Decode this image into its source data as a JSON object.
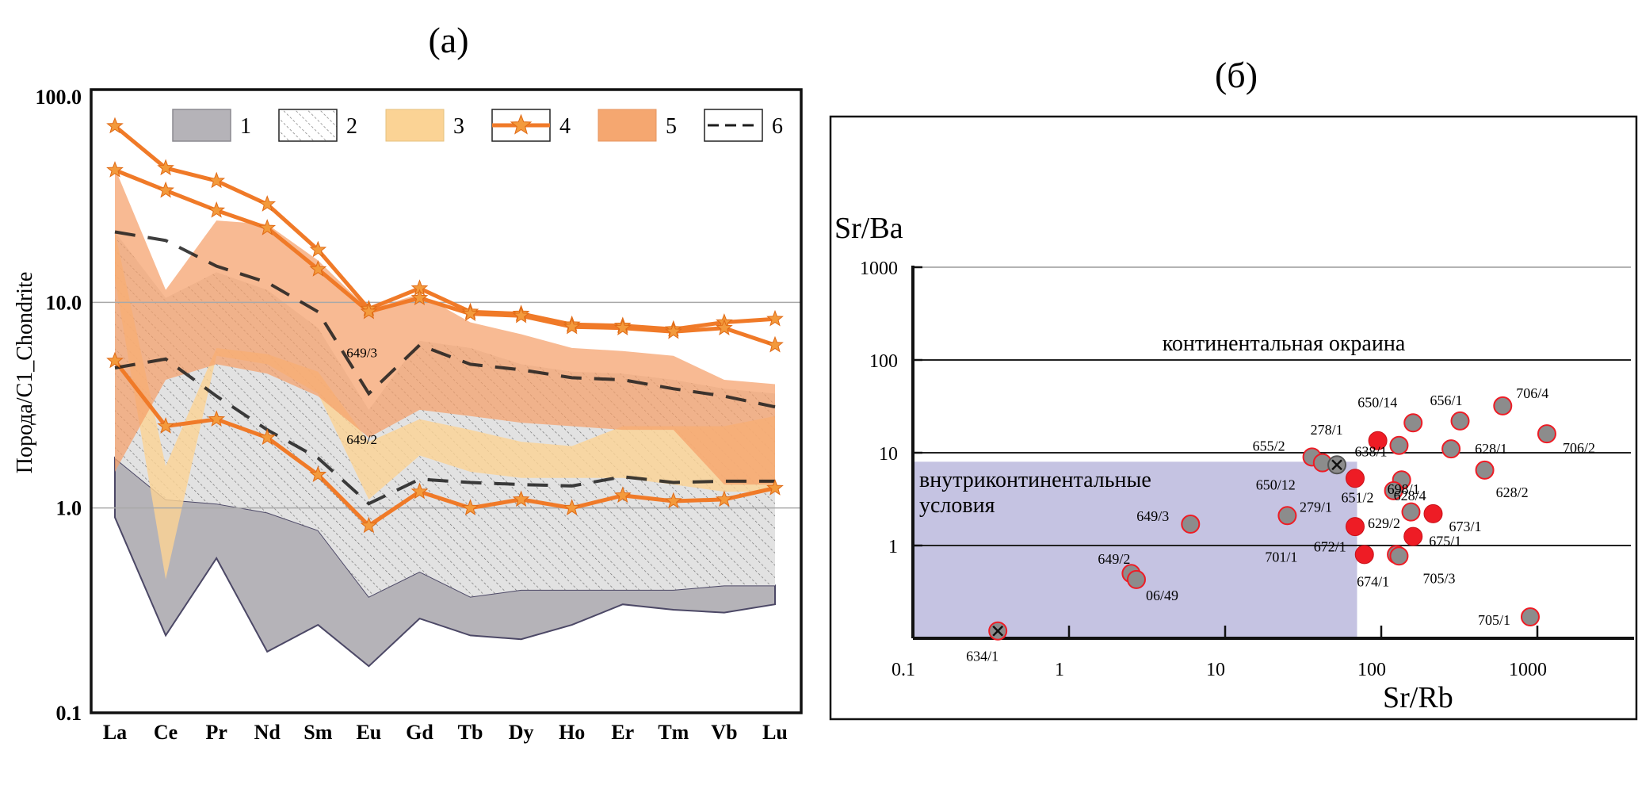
{
  "chart_data": [
    {
      "panel": "(a)",
      "type": "line",
      "ylabel": "Порода/C1_Chondrite",
      "yscale": "log",
      "ylim": [
        0.1,
        100.0
      ],
      "yticks": [
        "100.0",
        "10.0",
        "1.0",
        "0.1"
      ],
      "categories": [
        "La",
        "Ce",
        "Pr",
        "Nd",
        "Sm",
        "Eu",
        "Gd",
        "Tb",
        "Dy",
        "Ho",
        "Er",
        "Tm",
        "Vb",
        "Lu"
      ],
      "legend": [
        {
          "label": "1",
          "style": "gray-field",
          "color": "#b5b3b8"
        },
        {
          "label": "2",
          "style": "hatched-field",
          "color": "#dcdcdc"
        },
        {
          "label": "3",
          "style": "yellow-field",
          "color": "#fbd395"
        },
        {
          "label": "4",
          "style": "star-line",
          "color": "#f07a28"
        },
        {
          "label": "5",
          "style": "orange-field",
          "color": "#f5a770"
        },
        {
          "label": "6",
          "style": "dashed-line",
          "color": "#1c1c1c"
        }
      ],
      "fields": [
        {
          "name": "1",
          "lower": [
            0.9,
            0.24,
            0.57,
            0.2,
            0.27,
            0.17,
            0.29,
            0.24,
            0.23,
            0.27,
            0.34,
            0.32,
            0.31,
            0.34
          ],
          "upper": [
            1.75,
            1.1,
            1.05,
            0.95,
            0.78,
            0.37,
            0.49,
            0.37,
            0.4,
            0.4,
            0.4,
            0.4,
            0.42,
            0.42
          ]
        },
        {
          "name": "2",
          "lower": [
            1.75,
            1.1,
            1.05,
            0.95,
            0.78,
            0.37,
            0.49,
            0.37,
            0.4,
            0.4,
            0.4,
            0.4,
            0.42,
            0.42
          ],
          "upper": [
            22.0,
            10.5,
            14.0,
            11.5,
            7.5,
            3.0,
            6.5,
            6.0,
            5.0,
            4.6,
            4.5,
            4.2,
            3.8,
            3.6
          ]
        },
        {
          "name": "3",
          "lower": [
            13.0,
            0.45,
            5.5,
            5.0,
            3.6,
            1.1,
            1.8,
            1.5,
            1.4,
            1.4,
            1.4,
            1.3,
            1.2,
            1.2
          ],
          "upper": [
            22.0,
            1.6,
            6.0,
            5.6,
            4.6,
            2.1,
            2.7,
            2.4,
            2.1,
            2.0,
            2.5,
            2.5,
            2.5,
            2.8
          ]
        },
        {
          "name": "5",
          "lower": [
            1.5,
            4.2,
            5.0,
            4.5,
            3.5,
            2.2,
            3.0,
            2.8,
            2.6,
            2.5,
            2.4,
            2.4,
            1.3,
            1.3
          ],
          "upper": [
            45.0,
            11.5,
            25.0,
            24.0,
            16.0,
            9.2,
            11.0,
            8.0,
            7.0,
            6.0,
            5.8,
            5.5,
            4.2,
            4.0
          ]
        }
      ],
      "series": [
        {
          "name": "4",
          "values": [
            72.0,
            45.0,
            39.0,
            30.0,
            18.0,
            9.3,
            11.7,
            9.0,
            8.8,
            7.8,
            7.7,
            7.4,
            8.0,
            8.3
          ]
        },
        {
          "name": "4",
          "values": [
            44.0,
            35.0,
            28.0,
            23.0,
            14.5,
            9.0,
            10.5,
            8.8,
            8.6,
            7.6,
            7.5,
            7.2,
            7.5,
            6.2
          ]
        },
        {
          "name": "4",
          "values": [
            5.2,
            2.5,
            2.7,
            2.2,
            1.45,
            0.82,
            1.2,
            1.0,
            1.1,
            1.0,
            1.15,
            1.08,
            1.1,
            1.25
          ]
        },
        {
          "name": "6",
          "values": [
            22.0,
            20.0,
            15.0,
            12.5,
            9.0,
            3.6,
            6.2,
            5.0,
            4.7,
            4.3,
            4.2,
            3.8,
            3.5,
            3.1
          ]
        },
        {
          "name": "6",
          "values": [
            4.8,
            5.3,
            3.5,
            2.4,
            1.75,
            1.05,
            1.38,
            1.33,
            1.3,
            1.28,
            1.42,
            1.33,
            1.35,
            1.35
          ]
        }
      ],
      "annotations": [
        {
          "text": "649/3",
          "x": "Sm",
          "y": 5.4
        },
        {
          "text": "649/2",
          "x": "Sm",
          "y": 2.05
        }
      ]
    },
    {
      "panel": "(б)",
      "type": "scatter",
      "xlabel": "Sr/Rb",
      "ylabel": "Sr/Ba",
      "xscale": "log",
      "yscale": "log",
      "xlim": [
        0.1,
        6000
      ],
      "ylim": [
        0.1,
        1000
      ],
      "xticks": [
        "0.1",
        "1",
        "10",
        "100",
        "1000"
      ],
      "yticks": [
        "1000",
        "100",
        "10",
        "1"
      ],
      "regions": [
        {
          "label": "континентальная окраина"
        },
        {
          "label": "внутриконтинентальные условия",
          "x": [
            0.1,
            70
          ],
          "y": [
            0.1,
            8
          ]
        }
      ],
      "colors": {
        "gray": "#8c8c8c",
        "red": "#ee1c25",
        "region": "#c5c3e2"
      },
      "points": [
        {
          "label": "706/4",
          "x": 600,
          "y": 32,
          "kind": "gray"
        },
        {
          "label": "656/1",
          "x": 320,
          "y": 22,
          "kind": "gray"
        },
        {
          "label": "650/14",
          "x": 160,
          "y": 21,
          "kind": "gray"
        },
        {
          "label": "706/2",
          "x": 1150,
          "y": 16,
          "kind": "gray"
        },
        {
          "label": "278/1",
          "x": 95,
          "y": 13.5,
          "kind": "red"
        },
        {
          "label": "638/1",
          "x": 130,
          "y": 12,
          "kind": "gray"
        },
        {
          "label": "628/1",
          "x": 280,
          "y": 11,
          "kind": "gray"
        },
        {
          "label": "655/2",
          "x": 36,
          "y": 9,
          "kind": "gray"
        },
        {
          "label": "650/12",
          "x": 42,
          "y": 7.8,
          "kind": "gray"
        },
        {
          "label": "",
          "x": 52,
          "y": 7.4,
          "kind": "cross"
        },
        {
          "label": "628/2",
          "x": 460,
          "y": 6.5,
          "kind": "gray"
        },
        {
          "label": "279/1",
          "x": 68,
          "y": 5.3,
          "kind": "red"
        },
        {
          "label": "698/1",
          "x": 135,
          "y": 5.1,
          "kind": "gray"
        },
        {
          "label": "628/4",
          "x": 120,
          "y": 3.9,
          "kind": "gray"
        },
        {
          "label": "701/1",
          "x": 25,
          "y": 2.1,
          "kind": "gray"
        },
        {
          "label": "651/2",
          "x": 155,
          "y": 2.3,
          "kind": "gray"
        },
        {
          "label": "673/1",
          "x": 215,
          "y": 2.2,
          "kind": "red"
        },
        {
          "label": "649/3",
          "x": 6,
          "y": 1.7,
          "kind": "gray"
        },
        {
          "label": "629/2",
          "x": 68,
          "y": 1.6,
          "kind": "red"
        },
        {
          "label": "675/1",
          "x": 160,
          "y": 1.25,
          "kind": "red"
        },
        {
          "label": "672/1",
          "x": 78,
          "y": 0.8,
          "kind": "red"
        },
        {
          "label": "674/1",
          "x": 125,
          "y": 0.8,
          "kind": "gray"
        },
        {
          "label": "649/2",
          "x": 2.5,
          "y": 0.5,
          "kind": "gray"
        },
        {
          "label": "06/49",
          "x": 2.7,
          "y": 0.43,
          "kind": "gray"
        },
        {
          "label": "705/3",
          "x": 130,
          "y": 0.77,
          "kind": "gray"
        },
        {
          "label": "705/1",
          "x": 900,
          "y": 0.17,
          "kind": "gray"
        },
        {
          "label": "634/1",
          "x": 0.35,
          "y": 0.12,
          "kind": "cross-red"
        }
      ],
      "point_labels_extra": [
        "705/3"
      ]
    }
  ]
}
